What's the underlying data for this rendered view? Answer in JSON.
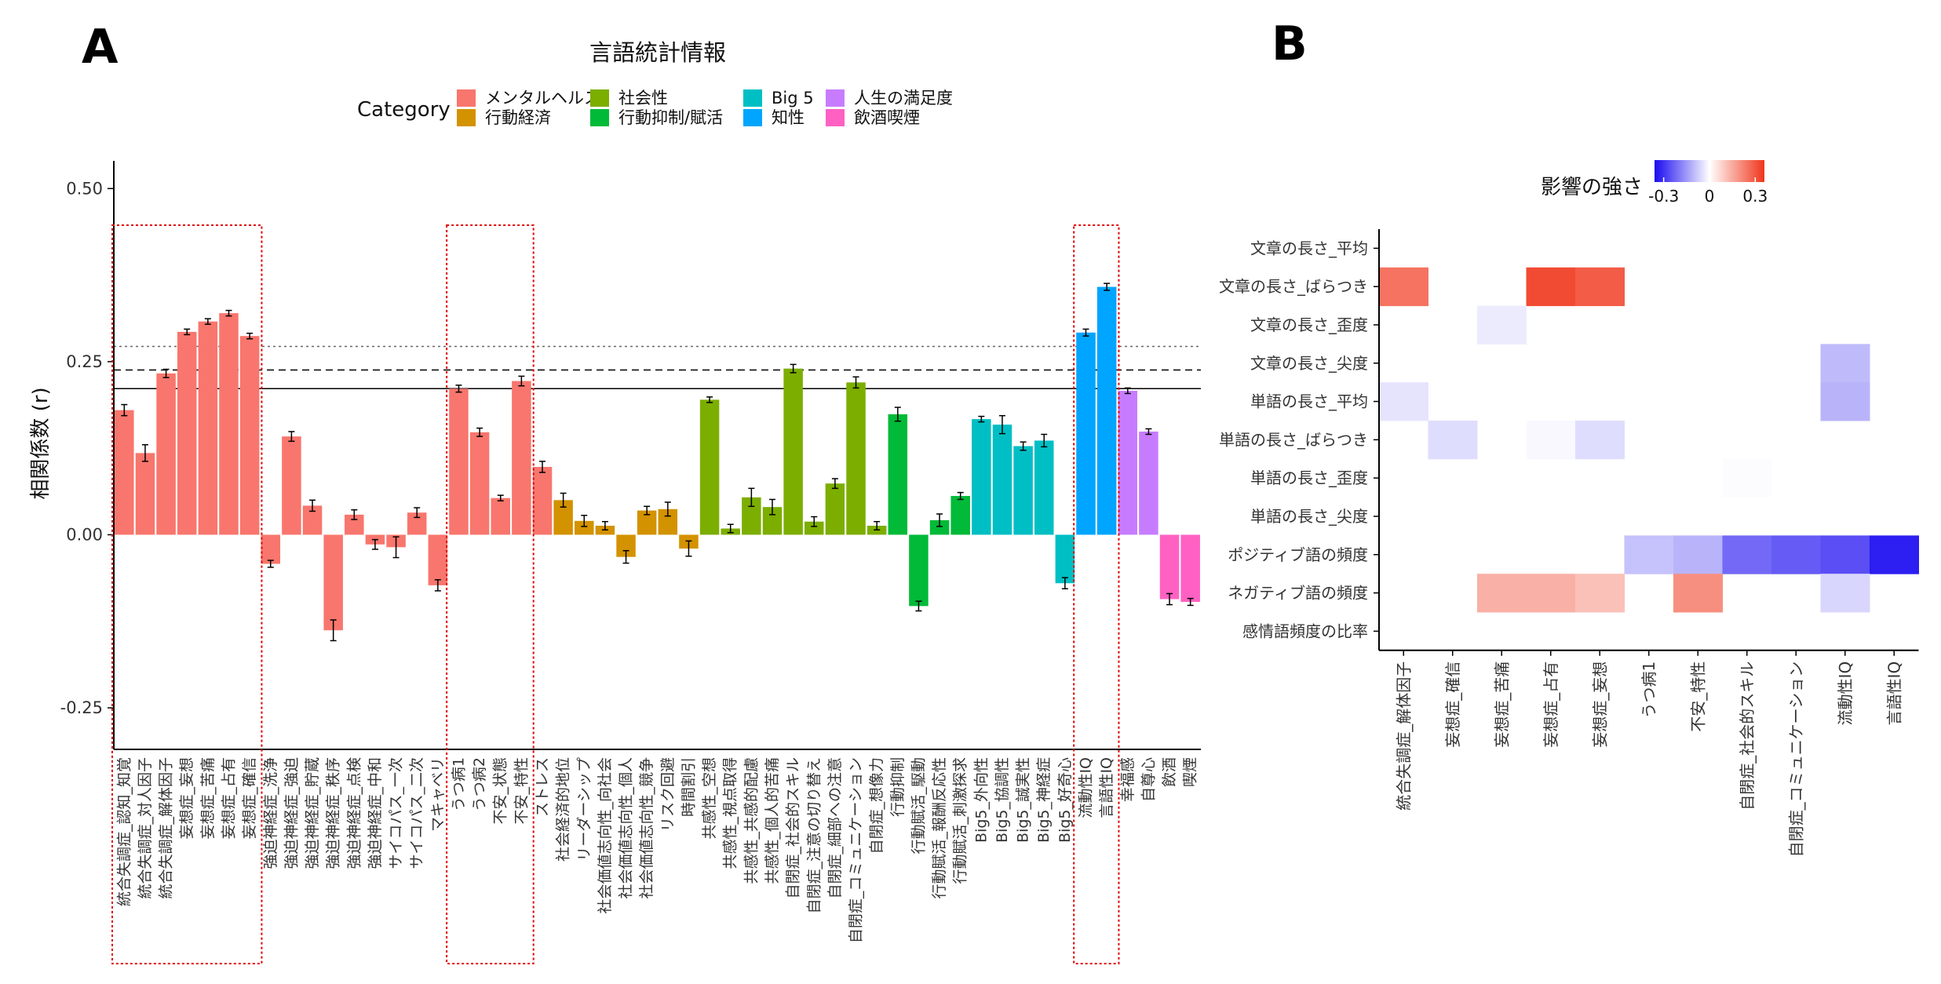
{
  "panel_a_label": "A",
  "panel_b_label": "B",
  "chart_data": [
    {
      "type": "bar",
      "title": "言語統計情報",
      "xlabel": "",
      "ylabel": "相関係数 (r)",
      "ylim": [
        -0.31,
        0.54
      ],
      "yticks": [
        0.5,
        0.25,
        0.0,
        -0.25
      ],
      "ytick_labels": [
        "0.50",
        "0.25",
        "0.00",
        "-0.25"
      ],
      "grid": false,
      "legend_title": "Category",
      "legend_position": "top",
      "legend": [
        {
          "name": "メンタルヘルス",
          "color": "#F8766D"
        },
        {
          "name": "行動経済",
          "color": "#D39200"
        },
        {
          "name": "社会性",
          "color": "#7CAE00"
        },
        {
          "name": "行動抑制/賦活",
          "color": "#00BA38"
        },
        {
          "name": "Big 5",
          "color": "#00BFC4"
        },
        {
          "name": "知性",
          "color": "#00A5FF"
        },
        {
          "name": "人生の満足度",
          "color": "#C77CFF"
        },
        {
          "name": "飲酒喫煙",
          "color": "#FF61C3"
        }
      ],
      "reference_lines": [
        {
          "value": 0.272,
          "style": "dotted"
        },
        {
          "value": 0.238,
          "style": "dashed"
        },
        {
          "value": 0.211,
          "style": "solid"
        }
      ],
      "highlight_boxes": [
        {
          "from": 0,
          "to": 6
        },
        {
          "from": 16,
          "to": 19
        },
        {
          "from": 46,
          "to": 47
        }
      ],
      "bars": [
        {
          "label": "統合失調症_認知_知覚",
          "value": 0.18,
          "err": 0.008,
          "category": "メンタルヘルス"
        },
        {
          "label": "統合失調症_対人因子",
          "value": 0.118,
          "err": 0.012,
          "category": "メンタルヘルス"
        },
        {
          "label": "統合失調症_解体因子",
          "value": 0.233,
          "err": 0.006,
          "category": "メンタルヘルス"
        },
        {
          "label": "妄想症_妄想",
          "value": 0.293,
          "err": 0.004,
          "category": "メンタルヘルス"
        },
        {
          "label": "妄想症_苦痛",
          "value": 0.308,
          "err": 0.004,
          "category": "メンタルヘルス"
        },
        {
          "label": "妄想症_占有",
          "value": 0.32,
          "err": 0.004,
          "category": "メンタルヘルス"
        },
        {
          "label": "妄想症_確信",
          "value": 0.287,
          "err": 0.004,
          "category": "メンタルヘルス"
        },
        {
          "label": "強迫神経症_洗浄",
          "value": -0.042,
          "err": 0.005,
          "category": "メンタルヘルス"
        },
        {
          "label": "強迫神経症_強迫",
          "value": 0.142,
          "err": 0.007,
          "category": "メンタルヘルス"
        },
        {
          "label": "強迫神経症_貯蔵",
          "value": 0.042,
          "err": 0.008,
          "category": "メンタルヘルス"
        },
        {
          "label": "強迫神経症_秩序",
          "value": -0.138,
          "err": 0.015,
          "category": "メンタルヘルス"
        },
        {
          "label": "強迫神経症_点検",
          "value": 0.029,
          "err": 0.007,
          "category": "メンタルヘルス"
        },
        {
          "label": "強迫神経症_中和",
          "value": -0.014,
          "err": 0.007,
          "category": "メンタルヘルス"
        },
        {
          "label": "サイコパス_一次",
          "value": -0.018,
          "err": 0.015,
          "category": "メンタルヘルス"
        },
        {
          "label": "サイコパス_二次",
          "value": 0.032,
          "err": 0.007,
          "category": "メンタルヘルス"
        },
        {
          "label": "マキャベリ",
          "value": -0.073,
          "err": 0.008,
          "category": "メンタルヘルス"
        },
        {
          "label": "うつ病1",
          "value": 0.211,
          "err": 0.005,
          "category": "メンタルヘルス"
        },
        {
          "label": "うつ病2",
          "value": 0.148,
          "err": 0.006,
          "category": "メンタルヘルス"
        },
        {
          "label": "不安_状態",
          "value": 0.053,
          "err": 0.004,
          "category": "メンタルヘルス"
        },
        {
          "label": "不安_特性",
          "value": 0.222,
          "err": 0.007,
          "category": "メンタルヘルス"
        },
        {
          "label": "ストレス",
          "value": 0.098,
          "err": 0.008,
          "category": "メンタルヘルス"
        },
        {
          "label": "社会経済的地位",
          "value": 0.05,
          "err": 0.01,
          "category": "行動経済"
        },
        {
          "label": "リーダーシップ",
          "value": 0.02,
          "err": 0.008,
          "category": "行動経済"
        },
        {
          "label": "社会価値志向性_向社会",
          "value": 0.013,
          "err": 0.006,
          "category": "行動経済"
        },
        {
          "label": "社会価値志向性_個人",
          "value": -0.032,
          "err": 0.009,
          "category": "行動経済"
        },
        {
          "label": "社会価値志向性_競争",
          "value": 0.035,
          "err": 0.006,
          "category": "行動経済"
        },
        {
          "label": "リスク回避",
          "value": 0.037,
          "err": 0.01,
          "category": "行動経済"
        },
        {
          "label": "時間割引",
          "value": -0.02,
          "err": 0.011,
          "category": "行動経済"
        },
        {
          "label": "共感性_空想",
          "value": 0.195,
          "err": 0.004,
          "category": "社会性"
        },
        {
          "label": "共感性_視点取得",
          "value": 0.009,
          "err": 0.006,
          "category": "社会性"
        },
        {
          "label": "共感性_共感的配慮",
          "value": 0.054,
          "err": 0.013,
          "category": "社会性"
        },
        {
          "label": "共感性_個人的苦痛",
          "value": 0.04,
          "err": 0.011,
          "category": "社会性"
        },
        {
          "label": "自閉症_社会的スキル",
          "value": 0.24,
          "err": 0.006,
          "category": "社会性"
        },
        {
          "label": "自閉症_注意の切り替え",
          "value": 0.019,
          "err": 0.007,
          "category": "社会性"
        },
        {
          "label": "自閉症_細部への注意",
          "value": 0.074,
          "err": 0.007,
          "category": "社会性"
        },
        {
          "label": "自閉症_コミュニケーション",
          "value": 0.22,
          "err": 0.008,
          "category": "社会性"
        },
        {
          "label": "自閉症_想像力",
          "value": 0.013,
          "err": 0.006,
          "category": "社会性"
        },
        {
          "label": "行動抑制",
          "value": 0.174,
          "err": 0.01,
          "category": "行動抑制/賦活"
        },
        {
          "label": "行動賦活_駆動",
          "value": -0.103,
          "err": 0.007,
          "category": "行動抑制/賦活"
        },
        {
          "label": "行動賦活_報酬反応性",
          "value": 0.021,
          "err": 0.009,
          "category": "行動抑制/賦活"
        },
        {
          "label": "行動賦活_刺激探求",
          "value": 0.056,
          "err": 0.005,
          "category": "行動抑制/賦活"
        },
        {
          "label": "Big5_外向性",
          "value": 0.167,
          "err": 0.004,
          "category": "Big 5"
        },
        {
          "label": "Big5_協調性",
          "value": 0.159,
          "err": 0.013,
          "category": "Big 5"
        },
        {
          "label": "Big5_誠実性",
          "value": 0.128,
          "err": 0.006,
          "category": "Big 5"
        },
        {
          "label": "Big5_神経症",
          "value": 0.136,
          "err": 0.009,
          "category": "Big 5"
        },
        {
          "label": "Big5_好奇心",
          "value": -0.07,
          "err": 0.008,
          "category": "Big 5"
        },
        {
          "label": "流動性IQ",
          "value": 0.292,
          "err": 0.005,
          "category": "知性"
        },
        {
          "label": "言語性IQ",
          "value": 0.358,
          "err": 0.005,
          "category": "知性"
        },
        {
          "label": "幸福感",
          "value": 0.208,
          "err": 0.004,
          "category": "人生の満足度"
        },
        {
          "label": "自尊心",
          "value": 0.149,
          "err": 0.004,
          "category": "人生の満足度"
        },
        {
          "label": "飲酒",
          "value": -0.093,
          "err": 0.008,
          "category": "飲酒喫煙"
        },
        {
          "label": "喫煙",
          "value": -0.097,
          "err": 0.005,
          "category": "飲酒喫煙"
        }
      ]
    },
    {
      "type": "heatmap",
      "title": "",
      "xlabel": "",
      "ylabel": "",
      "legend_title": "影響の強さ",
      "legend_position": "top",
      "color_range": [
        -0.36,
        0.36
      ],
      "legend_ticks": [
        -0.3,
        0,
        0.3
      ],
      "legend_tick_labels": [
        "-0.3",
        "0",
        "0.3"
      ],
      "rows": [
        "文章の長さ_平均",
        "文章の長さ_ばらつき",
        "文章の長さ_歪度",
        "文章の長さ_尖度",
        "単語の長さ_平均",
        "単語の長さ_ばらつき",
        "単語の長さ_歪度",
        "単語の長さ_尖度",
        "ポジティブ語の頻度",
        "ネガティブ語の頻度",
        "感情語頻度の比率"
      ],
      "columns": [
        "統合失調症_解体因子",
        "妄想症_確信",
        "妄想症_苦痛",
        "妄想症_占有",
        "妄想症_妄想",
        "うつ病1",
        "不安_特性",
        "自閉症_社会的スキル",
        "自閉症_コミュニケーション",
        "流動性IQ",
        "言語性IQ"
      ],
      "values": [
        [
          0,
          0,
          0,
          0,
          0,
          0,
          0,
          0,
          0,
          0,
          0
        ],
        [
          0.25,
          0,
          0,
          0.32,
          0.29,
          0,
          0,
          0,
          0,
          0,
          0
        ],
        [
          0,
          0,
          -0.03,
          0,
          0,
          0,
          0,
          0,
          0,
          0,
          0
        ],
        [
          0,
          0,
          0,
          0,
          0,
          0,
          0,
          0,
          0,
          -0.1,
          0
        ],
        [
          -0.04,
          0,
          0,
          0,
          0,
          0,
          0,
          0,
          0,
          -0.11,
          0
        ],
        [
          0,
          -0.05,
          0,
          -0.01,
          -0.05,
          0,
          0,
          0,
          0,
          0,
          0
        ],
        [
          0,
          0,
          0,
          0,
          0,
          0,
          0,
          -0.005,
          0,
          0,
          0
        ],
        [
          0,
          0,
          0,
          0,
          0,
          0,
          0,
          0,
          0,
          0,
          0
        ],
        [
          0,
          0,
          0,
          0,
          0,
          -0.09,
          -0.11,
          -0.22,
          -0.24,
          -0.26,
          -0.33
        ],
        [
          0,
          0,
          0.14,
          0.14,
          0.11,
          0,
          0.2,
          0,
          0,
          -0.06,
          0
        ],
        [
          0,
          0,
          0,
          0,
          0,
          0,
          0,
          0,
          0,
          0,
          0
        ]
      ]
    }
  ]
}
